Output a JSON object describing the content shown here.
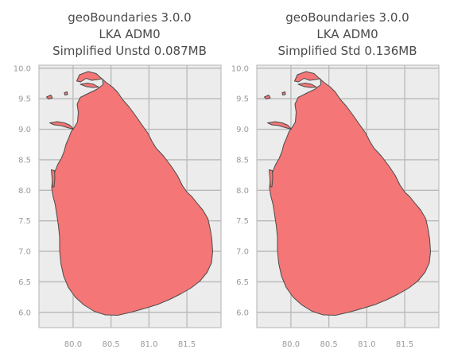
{
  "panels": [
    {
      "title_lines": [
        "geoBoundaries 3.0.0",
        "LKA ADM0",
        "Simplified Unstd 0.087MB"
      ],
      "x_ticks": [
        "80.0",
        "80.5",
        "81.0",
        "81.5"
      ],
      "y_ticks": [
        "10.0",
        "9.5",
        "9.0",
        "8.5",
        "8.0",
        "7.5",
        "7.0",
        "6.5",
        "6.0"
      ],
      "x_tick_values": [
        80.0,
        80.5,
        81.0,
        81.5
      ],
      "y_tick_values": [
        10.0,
        9.5,
        9.0,
        8.5,
        8.0,
        7.5,
        7.0,
        6.5,
        6.0
      ],
      "xlim": [
        79.55,
        81.95
      ],
      "ylim": [
        5.75,
        10.05
      ]
    },
    {
      "title_lines": [
        "geoBoundaries 3.0.0",
        "LKA ADM0",
        "Simplified Std 0.136MB"
      ],
      "x_ticks": [
        "80.0",
        "80.5",
        "81.0",
        "81.5"
      ],
      "y_ticks": [
        "10.0",
        "9.5",
        "9.0",
        "8.5",
        "8.0",
        "7.5",
        "7.0",
        "6.5",
        "6.0"
      ],
      "x_tick_values": [
        80.0,
        80.5,
        81.0,
        81.5
      ],
      "y_tick_values": [
        10.0,
        9.5,
        9.0,
        8.5,
        8.0,
        7.5,
        7.0,
        6.5,
        6.0
      ],
      "xlim": [
        79.55,
        81.95
      ],
      "ylim": [
        5.75,
        10.05
      ]
    }
  ],
  "style": {
    "land_fill": "#f47676",
    "land_stroke": "#4b4b4b",
    "panel_bg": "#ececec",
    "grid_color": "#b8b8b8",
    "frame_color": "#bdbdbd"
  }
}
